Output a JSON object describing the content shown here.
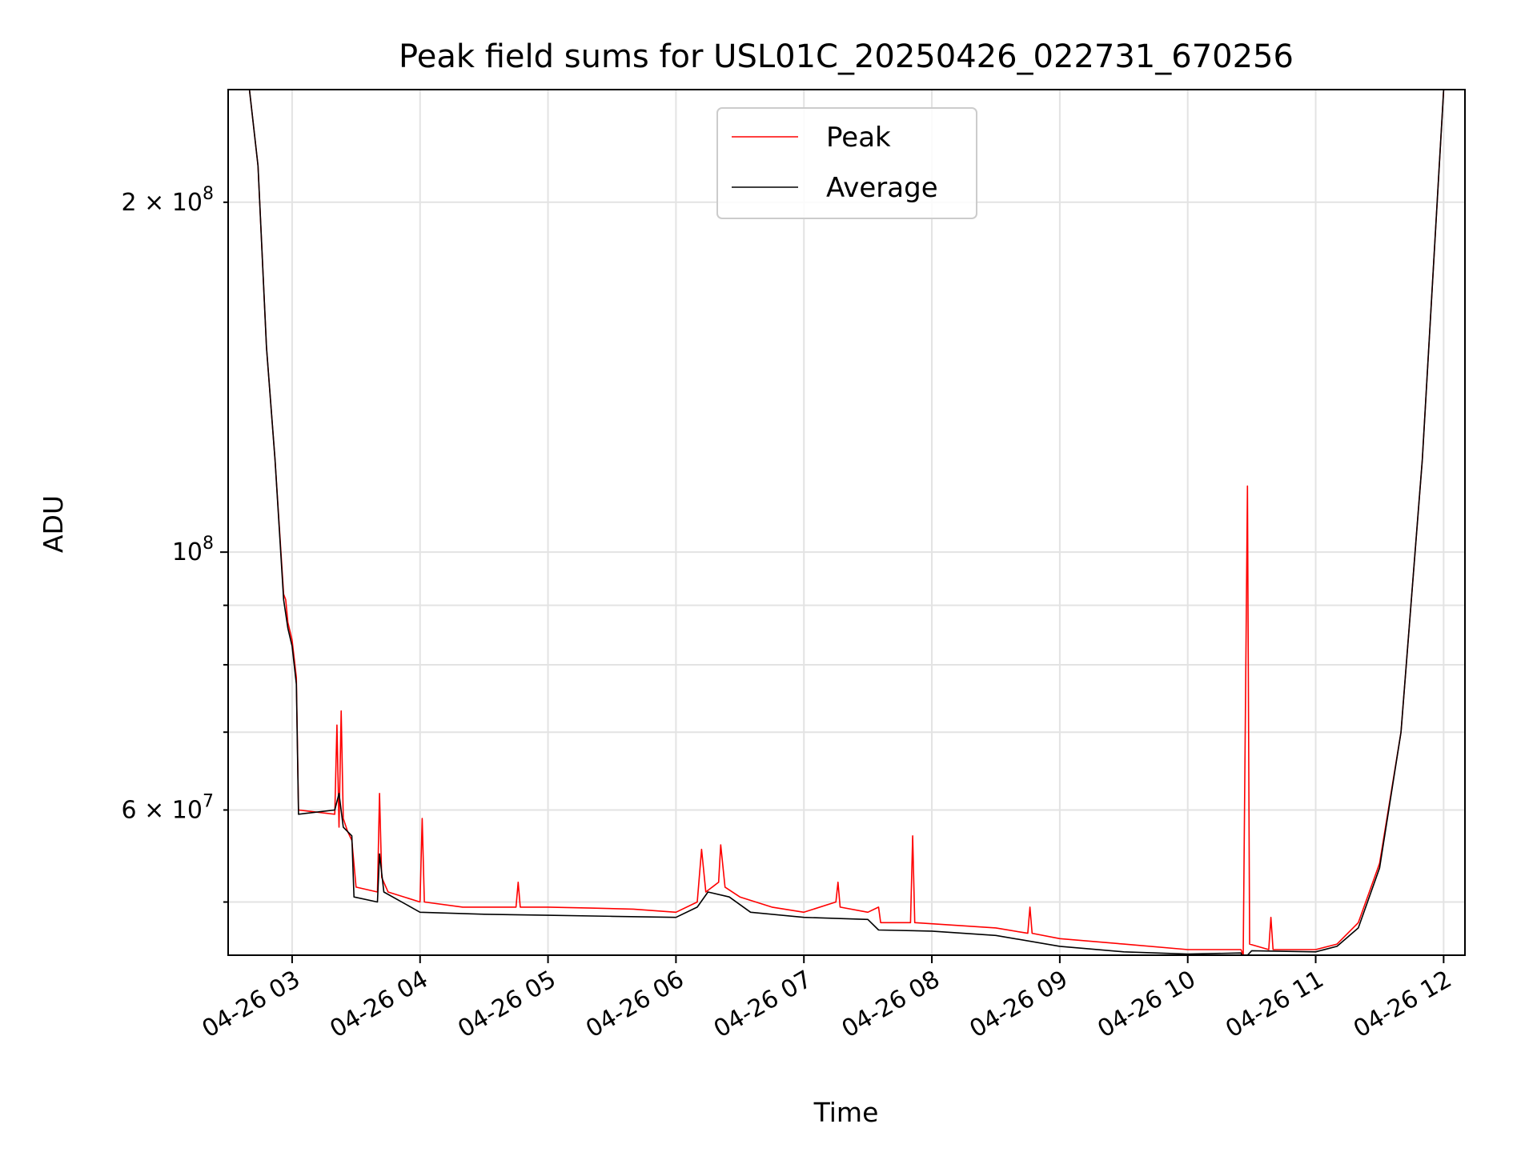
{
  "chart_data": {
    "type": "line",
    "title": "Peak field sums for USL01C_20250426_022731_670256",
    "xlabel": "Time",
    "ylabel": "ADU",
    "y_scale": "log",
    "grid": true,
    "legend_position": "top-center",
    "xlim": [
      "04-26 02:30",
      "04-26 12:10"
    ],
    "ylim": [
      45000000,
      250000000
    ],
    "x_ticks": [
      "04-26 03",
      "04-26 04",
      "04-26 05",
      "04-26 06",
      "04-26 07",
      "04-26 08",
      "04-26 09",
      "04-26 10",
      "04-26 11",
      "04-26 12"
    ],
    "y_ticks_major": [
      {
        "value": 100000000,
        "label": "10^8"
      }
    ],
    "y_ticks_minor": [
      {
        "value": 50000000,
        "label": ""
      },
      {
        "value": 60000000,
        "label": "6 × 10^7"
      },
      {
        "value": 70000000,
        "label": ""
      },
      {
        "value": 80000000,
        "label": ""
      },
      {
        "value": 90000000,
        "label": ""
      },
      {
        "value": 200000000,
        "label": "2 × 10^8"
      }
    ],
    "series": [
      {
        "name": "Peak",
        "color": "#ff0000",
        "points": [
          [
            "04-26 02:40",
            250000000
          ],
          [
            "04-26 02:44",
            215000000
          ],
          [
            "04-26 02:48",
            150000000
          ],
          [
            "04-26 02:52",
            120000000
          ],
          [
            "04-26 02:56",
            92000000
          ],
          [
            "04-26 02:57",
            91000000
          ],
          [
            "04-26 02:58",
            87000000
          ],
          [
            "04-26 03:00",
            84000000
          ],
          [
            "04-26 03:02",
            78000000
          ],
          [
            "04-26 03:03",
            60000000
          ],
          [
            "04-26 03:20",
            59500000
          ],
          [
            "04-26 03:21",
            71000000
          ],
          [
            "04-26 03:22",
            58000000
          ],
          [
            "04-26 03:23",
            73000000
          ],
          [
            "04-26 03:24",
            59000000
          ],
          [
            "04-26 03:26",
            57500000
          ],
          [
            "04-26 03:28",
            56500000
          ],
          [
            "04-26 03:30",
            51500000
          ],
          [
            "04-26 03:40",
            51000000
          ],
          [
            "04-26 03:41",
            62000000
          ],
          [
            "04-26 03:42",
            52500000
          ],
          [
            "04-26 03:45",
            51000000
          ],
          [
            "04-26 04:00",
            50000000
          ],
          [
            "04-26 04:01",
            59000000
          ],
          [
            "04-26 04:02",
            50000000
          ],
          [
            "04-26 04:20",
            49500000
          ],
          [
            "04-26 04:45",
            49500000
          ],
          [
            "04-26 04:46",
            52000000
          ],
          [
            "04-26 04:47",
            49500000
          ],
          [
            "04-26 05:00",
            49500000
          ],
          [
            "04-26 05:20",
            49400000
          ],
          [
            "04-26 05:40",
            49300000
          ],
          [
            "04-26 06:00",
            49000000
          ],
          [
            "04-26 06:10",
            50000000
          ],
          [
            "04-26 06:12",
            55500000
          ],
          [
            "04-26 06:14",
            51000000
          ],
          [
            "04-26 06:20",
            52000000
          ],
          [
            "04-26 06:21",
            56000000
          ],
          [
            "04-26 06:23",
            51500000
          ],
          [
            "04-26 06:30",
            50500000
          ],
          [
            "04-26 06:45",
            49500000
          ],
          [
            "04-26 07:00",
            49000000
          ],
          [
            "04-26 07:15",
            50000000
          ],
          [
            "04-26 07:16",
            52000000
          ],
          [
            "04-26 07:17",
            49500000
          ],
          [
            "04-26 07:30",
            49000000
          ],
          [
            "04-26 07:35",
            49500000
          ],
          [
            "04-26 07:36",
            48000000
          ],
          [
            "04-26 07:50",
            48000000
          ],
          [
            "04-26 07:51",
            57000000
          ],
          [
            "04-26 07:52",
            48000000
          ],
          [
            "04-26 08:30",
            47500000
          ],
          [
            "04-26 08:45",
            47000000
          ],
          [
            "04-26 08:46",
            49500000
          ],
          [
            "04-26 08:47",
            47000000
          ],
          [
            "04-26 09:00",
            46500000
          ],
          [
            "04-26 09:30",
            46000000
          ],
          [
            "04-26 10:00",
            45500000
          ],
          [
            "04-26 10:25",
            45500000
          ],
          [
            "04-26 10:26",
            45000000
          ],
          [
            "04-26 10:28",
            114000000
          ],
          [
            "04-26 10:29",
            46000000
          ],
          [
            "04-26 10:38",
            45500000
          ],
          [
            "04-26 10:39",
            48500000
          ],
          [
            "04-26 10:40",
            45500000
          ],
          [
            "04-26 11:00",
            45500000
          ],
          [
            "04-26 11:10",
            46000000
          ],
          [
            "04-26 11:20",
            48000000
          ],
          [
            "04-26 11:30",
            54000000
          ],
          [
            "04-26 11:40",
            70000000
          ],
          [
            "04-26 11:50",
            120000000
          ],
          [
            "04-26 12:00",
            250000000
          ]
        ]
      },
      {
        "name": "Average",
        "color": "#000000",
        "points": [
          [
            "04-26 02:40",
            250000000
          ],
          [
            "04-26 02:44",
            215000000
          ],
          [
            "04-26 02:48",
            150000000
          ],
          [
            "04-26 02:52",
            120000000
          ],
          [
            "04-26 02:56",
            91000000
          ],
          [
            "04-26 02:58",
            86000000
          ],
          [
            "04-26 03:00",
            83000000
          ],
          [
            "04-26 03:02",
            77000000
          ],
          [
            "04-26 03:03",
            59500000
          ],
          [
            "04-26 03:20",
            60000000
          ],
          [
            "04-26 03:22",
            62000000
          ],
          [
            "04-26 03:24",
            58000000
          ],
          [
            "04-26 03:28",
            57000000
          ],
          [
            "04-26 03:29",
            50500000
          ],
          [
            "04-26 03:40",
            50000000
          ],
          [
            "04-26 03:41",
            55000000
          ],
          [
            "04-26 03:43",
            51000000
          ],
          [
            "04-26 04:00",
            49000000
          ],
          [
            "04-26 04:30",
            48800000
          ],
          [
            "04-26 05:00",
            48700000
          ],
          [
            "04-26 05:30",
            48600000
          ],
          [
            "04-26 06:00",
            48500000
          ],
          [
            "04-26 06:10",
            49500000
          ],
          [
            "04-26 06:15",
            51000000
          ],
          [
            "04-26 06:25",
            50500000
          ],
          [
            "04-26 06:35",
            49000000
          ],
          [
            "04-26 07:00",
            48500000
          ],
          [
            "04-26 07:30",
            48300000
          ],
          [
            "04-26 07:35",
            47300000
          ],
          [
            "04-26 08:00",
            47200000
          ],
          [
            "04-26 08:30",
            46800000
          ],
          [
            "04-26 09:00",
            45800000
          ],
          [
            "04-26 09:30",
            45300000
          ],
          [
            "04-26 10:00",
            45100000
          ],
          [
            "04-26 10:25",
            45200000
          ],
          [
            "04-26 10:26",
            44600000
          ],
          [
            "04-26 10:30",
            45400000
          ],
          [
            "04-26 11:00",
            45300000
          ],
          [
            "04-26 11:10",
            45800000
          ],
          [
            "04-26 11:20",
            47500000
          ],
          [
            "04-26 11:30",
            53500000
          ],
          [
            "04-26 11:40",
            70000000
          ],
          [
            "04-26 11:50",
            120000000
          ],
          [
            "04-26 12:00",
            250000000
          ]
        ]
      }
    ]
  }
}
